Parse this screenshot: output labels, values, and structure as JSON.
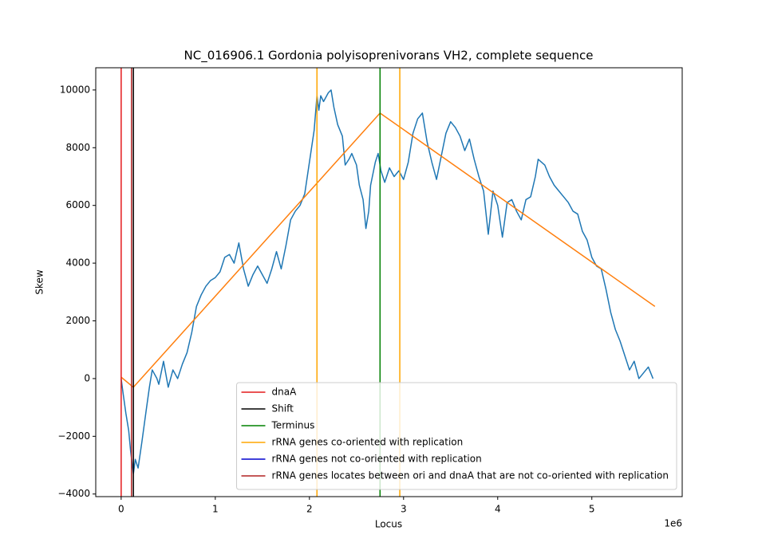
{
  "chart_data": {
    "type": "line",
    "title": "NC_016906.1 Gordonia polyisoprenivorans VH2, complete sequence",
    "xlabel": "Locus",
    "ylabel": "Skew",
    "x_offset_label": "1e6",
    "xlim": [
      -270000,
      5960000
    ],
    "ylim": [
      -4090,
      10770
    ],
    "xticks": [
      0,
      {
        "value": 1000000,
        "label": "1"
      },
      {
        "value": 2000000,
        "label": "2"
      },
      {
        "value": 3000000,
        "label": "3"
      },
      {
        "value": 4000000,
        "label": "4"
      },
      {
        "value": 5000000,
        "label": "5"
      }
    ],
    "yticks": [
      {
        "value": -4000,
        "label": "−4000"
      },
      {
        "value": -2000,
        "label": "−2000"
      },
      0,
      2000,
      4000,
      6000,
      8000,
      10000
    ],
    "legend": "lower right",
    "series": [
      {
        "color": "#1f77b4",
        "x": [
          0,
          20000,
          50000,
          80000,
          100000,
          130000,
          150000,
          180000,
          220000,
          270000,
          300000,
          330000,
          380000,
          400000,
          450000,
          500000,
          550000,
          600000,
          650000,
          700000,
          750000,
          800000,
          850000,
          900000,
          950000,
          1000000,
          1050000,
          1100000,
          1150000,
          1200000,
          1250000,
          1300000,
          1350000,
          1400000,
          1450000,
          1500000,
          1550000,
          1600000,
          1650000,
          1700000,
          1750000,
          1800000,
          1850000,
          1900000,
          1950000,
          2000000,
          2050000,
          2080000,
          2100000,
          2120000,
          2150000,
          2200000,
          2230000,
          2260000,
          2300000,
          2350000,
          2380000,
          2420000,
          2450000,
          2500000,
          2530000,
          2570000,
          2600000,
          2630000,
          2650000,
          2700000,
          2730000,
          2760000,
          2800000,
          2850000,
          2900000,
          2950000,
          3000000,
          3050000,
          3100000,
          3150000,
          3200000,
          3250000,
          3300000,
          3350000,
          3400000,
          3450000,
          3500000,
          3550000,
          3600000,
          3650000,
          3700000,
          3750000,
          3800000,
          3850000,
          3900000,
          3950000,
          4000000,
          4050000,
          4100000,
          4150000,
          4200000,
          4250000,
          4300000,
          4350000,
          4400000,
          4430000,
          4500000,
          4550000,
          4600000,
          4650000,
          4700000,
          4750000,
          4800000,
          4850000,
          4900000,
          4950000,
          5000000,
          5050000,
          5100000,
          5150000,
          5200000,
          5250000,
          5300000,
          5350000,
          5400000,
          5450000,
          5500000,
          5550000,
          5600000,
          5650000
        ],
        "values": [
          0,
          -500,
          -1200,
          -1800,
          -2500,
          -3300,
          -2800,
          -3100,
          -2200,
          -1000,
          -300,
          300,
          0,
          -200,
          600,
          -300,
          300,
          0,
          500,
          900,
          1600,
          2500,
          2900,
          3200,
          3400,
          3500,
          3700,
          4200,
          4300,
          4000,
          4700,
          3800,
          3200,
          3600,
          3900,
          3600,
          3300,
          3800,
          4400,
          3800,
          4600,
          5500,
          5800,
          6000,
          6400,
          7500,
          8600,
          9800,
          9300,
          9800,
          9600,
          9900,
          10000,
          9400,
          8800,
          8400,
          7400,
          7600,
          7800,
          7400,
          6700,
          6200,
          5200,
          5800,
          6700,
          7500,
          7800,
          7200,
          6800,
          7300,
          7000,
          7200,
          6900,
          7500,
          8500,
          9000,
          9200,
          8200,
          7500,
          6900,
          7700,
          8500,
          8900,
          8700,
          8400,
          7900,
          8300,
          7600,
          7000,
          6500,
          5000,
          6500,
          6000,
          4900,
          6100,
          6200,
          5800,
          5500,
          6200,
          6300,
          7000,
          7600,
          7400,
          7000,
          6700,
          6500,
          6300,
          6100,
          5800,
          5700,
          5100,
          4800,
          4200,
          3900,
          3800,
          3100,
          2300,
          1700,
          1300,
          800,
          300,
          600,
          0,
          200,
          400,
          0
        ]
      },
      {
        "color": "#ff7f0e",
        "x": [
          0,
          130000,
          2750000,
          5670000
        ],
        "values": [
          50,
          -300,
          9200,
          2500
        ]
      }
    ],
    "vlines": [
      {
        "name": "dnaA",
        "color": "#e41a1c",
        "x": [
          0
        ]
      },
      {
        "name": "Shift",
        "color": "#000000",
        "x": [
          130000
        ]
      },
      {
        "name": "Terminus",
        "color": "#008000",
        "x": [
          2750000
        ]
      },
      {
        "name": "rRNA genes co-oriented with replication",
        "color": "#ffa500",
        "x": [
          2080000,
          2960000
        ]
      },
      {
        "name": "rRNA genes not co-oriented with replication",
        "color": "#0000cd",
        "x": []
      },
      {
        "name": "rRNA genes locates between ori and dnaA that are not co-oriented with replication",
        "color": "#b22222",
        "x": [
          110000
        ]
      }
    ]
  }
}
